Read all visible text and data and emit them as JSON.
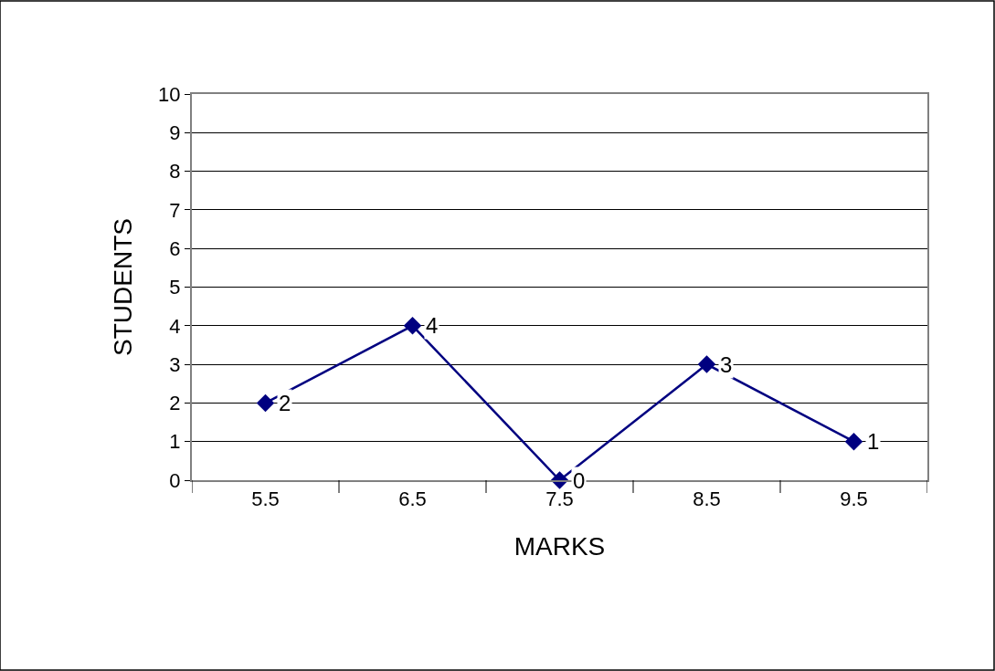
{
  "chart_data": {
    "type": "line",
    "xlabel": "MARKS",
    "ylabel": "STUDENTS",
    "categories": [
      "5.5",
      "6.5",
      "7.5",
      "8.5",
      "9.5"
    ],
    "series": [
      {
        "color": "#000080",
        "values": [
          2,
          4,
          0,
          3,
          1
        ]
      }
    ],
    "ylim": [
      0,
      10
    ],
    "yticks": [
      0,
      1,
      2,
      3,
      4,
      5,
      6,
      7,
      8,
      9,
      10
    ],
    "grid": "y",
    "marker": "diamond",
    "line_style": "solid",
    "data_labels": true,
    "legend": false
  }
}
